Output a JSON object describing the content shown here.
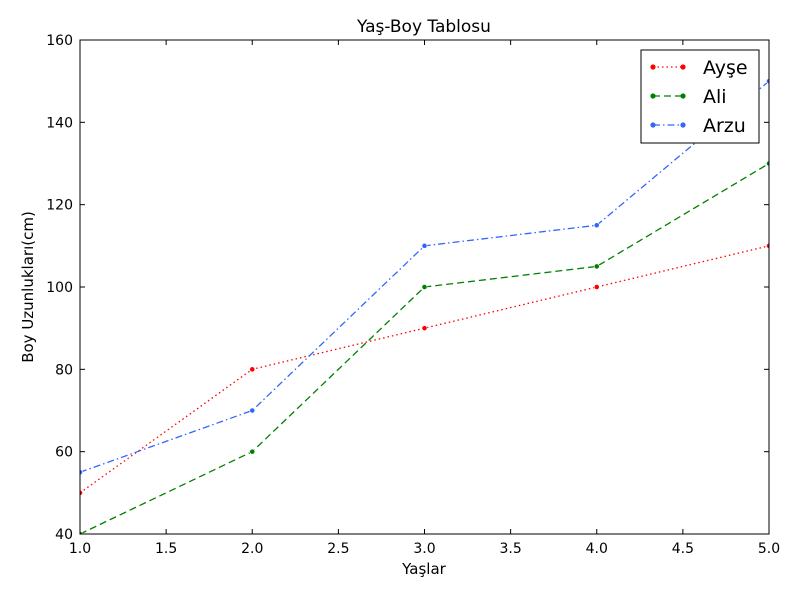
{
  "chart_data": {
    "type": "line",
    "title": "Yaş-Boy Tablosu",
    "xlabel": "Yaşlar",
    "ylabel": "Boy Uzunlukları(cm)",
    "xlim": [
      1.0,
      5.0
    ],
    "ylim": [
      40,
      160
    ],
    "xticks": [
      "1.0",
      "1.5",
      "2.0",
      "2.5",
      "3.0",
      "3.5",
      "4.0",
      "4.5",
      "5.0"
    ],
    "yticks": [
      "40",
      "60",
      "80",
      "100",
      "120",
      "140",
      "160"
    ],
    "grid": false,
    "legend_position": "top-right",
    "series": [
      {
        "name": "Ayşe",
        "color": "#ff0000",
        "line_style": "dotted",
        "x": [
          1,
          2,
          3,
          4,
          5
        ],
        "y": [
          50,
          80,
          90,
          100,
          110
        ]
      },
      {
        "name": "Ali",
        "color": "#008000",
        "line_style": "dashed",
        "x": [
          1,
          2,
          3,
          4,
          5
        ],
        "y": [
          40,
          60,
          100,
          105,
          130
        ]
      },
      {
        "name": "Arzu",
        "color": "#3366ff",
        "line_style": "dashdot",
        "x": [
          1,
          2,
          3,
          4,
          5
        ],
        "y": [
          55,
          70,
          110,
          115,
          150
        ]
      }
    ]
  }
}
